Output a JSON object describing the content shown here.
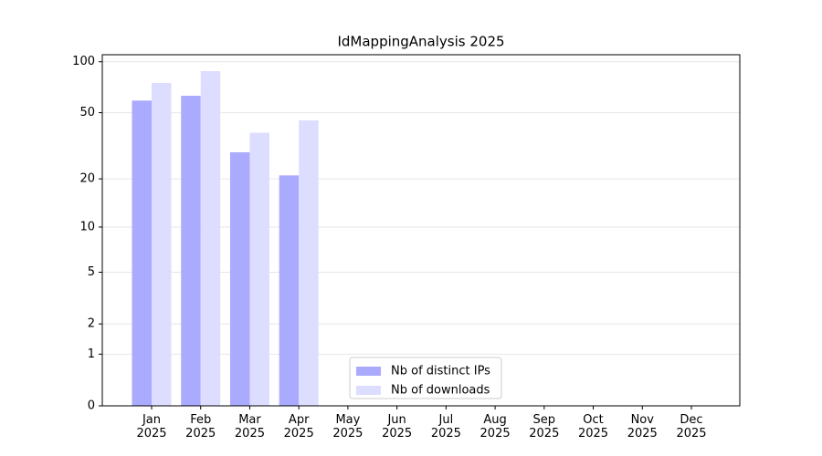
{
  "chart_data": {
    "type": "bar",
    "title": "IdMappingAnalysis 2025",
    "categories": [
      "Jan\n2025",
      "Feb\n2025",
      "Mar\n2025",
      "Apr\n2025",
      "May\n2025",
      "Jun\n2025",
      "Jul\n2025",
      "Aug\n2025",
      "Sep\n2025",
      "Oct\n2025",
      "Nov\n2025",
      "Dec\n2025"
    ],
    "series": [
      {
        "name": "Nb of distinct IPs",
        "color": "#aaaaff",
        "values": [
          59,
          63,
          29,
          21,
          null,
          null,
          null,
          null,
          null,
          null,
          null,
          null
        ]
      },
      {
        "name": "Nb of downloads",
        "color": "#ddddff",
        "values": [
          75,
          88,
          38,
          45,
          null,
          null,
          null,
          null,
          null,
          null,
          null,
          null
        ]
      }
    ],
    "yscale": "log1p",
    "ylim": [
      0,
      110
    ],
    "yticks": [
      0,
      1,
      2,
      5,
      10,
      20,
      50,
      100
    ],
    "grid": true,
    "legend": "lower center"
  }
}
